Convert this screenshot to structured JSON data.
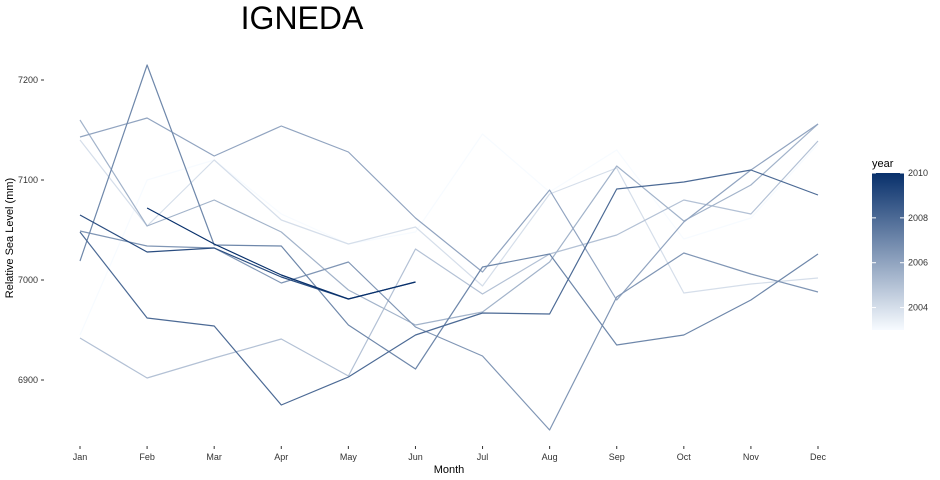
{
  "chart_data": {
    "type": "line",
    "title": "IGNEDA",
    "xlabel": "Month",
    "ylabel": "Relative Sea Level (mm)",
    "categories": [
      "Jan",
      "Feb",
      "Mar",
      "Apr",
      "May",
      "Jun",
      "Jul",
      "Aug",
      "Sep",
      "Oct",
      "Nov",
      "Dec"
    ],
    "ylim": [
      6840,
      7232
    ],
    "yticks": [
      6900,
      7000,
      7100,
      7200
    ],
    "grid": false,
    "legend": {
      "title": "year",
      "position": "right",
      "range": [
        2003,
        2010
      ],
      "ticks": [
        2004,
        2006,
        2008,
        2010
      ],
      "low_color": "#f7fbff",
      "high_color": "#08306b"
    },
    "series": [
      {
        "year": 2003,
        "values": [
          6945,
          7100,
          7120,
          7066,
          7036,
          7048,
          7146,
          7088,
          7130,
          7041,
          7062,
          7136
        ]
      },
      {
        "year": 2004,
        "values": [
          7140,
          7054,
          7120,
          7060,
          7036,
          7053,
          6994,
          7086,
          7112,
          6987,
          6996,
          7002
        ]
      },
      {
        "year": 2005,
        "values": [
          6942,
          6902,
          6922,
          6941,
          6904,
          7031,
          6986,
          7026,
          7045,
          7080,
          7066,
          7139
        ]
      },
      {
        "year": 2005.5,
        "values": [
          7160,
          7054,
          7080,
          7048,
          6990,
          6955,
          6968,
          7018,
          7114,
          7059,
          7095,
          7156
        ]
      },
      {
        "year": 2006,
        "values": [
          7143,
          7162,
          7124,
          7154,
          7128,
          7062,
          7008,
          7090,
          6980,
          7058,
          7110,
          7156
        ]
      },
      {
        "year": 2006.5,
        "values": [
          7049,
          7034,
          7032,
          6997,
          7018,
          6953,
          6924,
          6850,
          6983,
          7027,
          7006,
          6988
        ]
      },
      {
        "year": 2007,
        "values": [
          7019,
          7215,
          7035,
          7034,
          6955,
          6911,
          7013,
          7026,
          6935,
          6945,
          6980,
          7026
        ]
      },
      {
        "year": 2008,
        "values": [
          7048,
          6962,
          6954,
          6875,
          6903,
          6945,
          6967,
          6966,
          7091,
          7098,
          7110,
          7085
        ]
      },
      {
        "year": 2009,
        "values": [
          7065,
          7028,
          7032,
          7003,
          6981,
          6998,
          null,
          null,
          null,
          null,
          null,
          null
        ]
      },
      {
        "year": 2010,
        "values": [
          null,
          7072,
          7036,
          7005,
          6981,
          6998,
          null,
          null,
          null,
          null,
          null,
          null
        ]
      }
    ]
  }
}
